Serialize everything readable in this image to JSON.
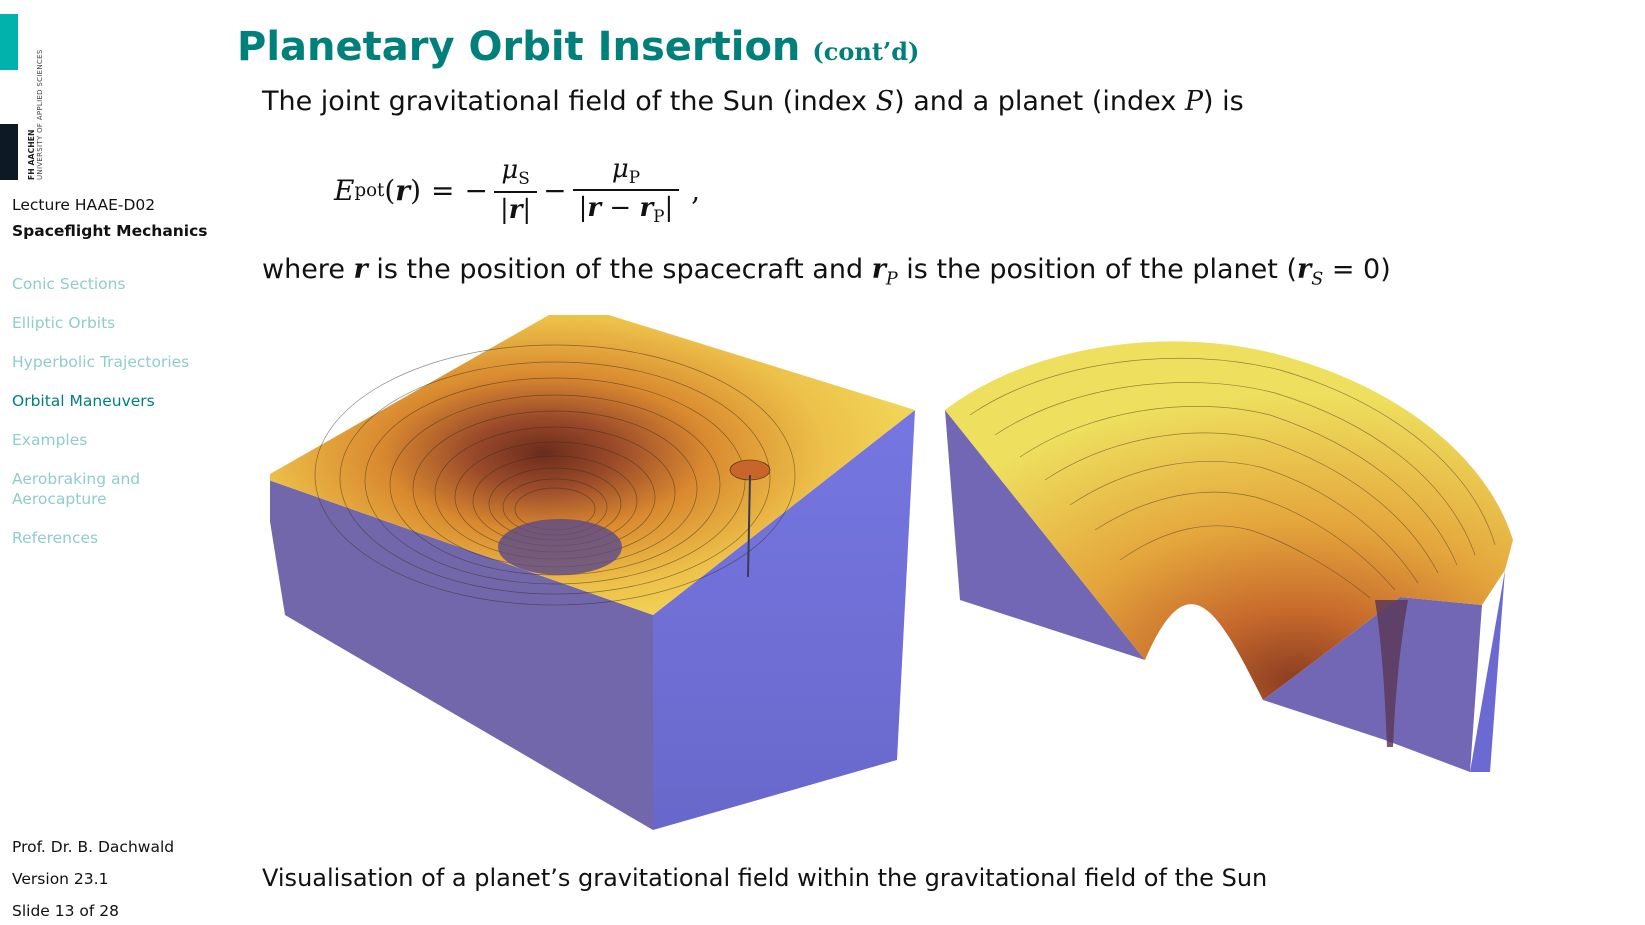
{
  "logo": {
    "line1": "FH AACHEN",
    "line2": "UNIVERSITY OF APPLIED SCIENCES",
    "colors": {
      "teal": "#00b1ac",
      "dark": "#0d1a26"
    }
  },
  "sidebar": {
    "lecture": "Lecture HAAE-D02",
    "course": "Spaceflight Mechanics",
    "items": [
      {
        "label": "Conic Sections",
        "active": false
      },
      {
        "label": "Elliptic Orbits",
        "active": false
      },
      {
        "label": "Hyperbolic Trajectories",
        "active": false
      },
      {
        "label": "Orbital Maneuvers",
        "active": true
      },
      {
        "label": "Examples",
        "active": false
      },
      {
        "label": "Aerobraking and Aerocapture",
        "active": false
      },
      {
        "label": "References",
        "active": false
      }
    ],
    "author": "Prof. Dr. B. Dachwald",
    "version": "Version 23.1",
    "slide": "Slide 13 of 28"
  },
  "slide": {
    "title": "Planetary Orbit Insertion",
    "title_suffix": "(cont’d)",
    "intro": {
      "t1": "The joint gravitational field of the Sun (index ",
      "s": "S",
      "t2": ") and a planet (index ",
      "p": "P",
      "t3": ") is"
    },
    "formula": {
      "lhs": "E",
      "lhs_sub": "pot",
      "arg": "r",
      "num1": "μ",
      "num1_sub": "S",
      "den1": "r",
      "num2": "μ",
      "num2_sub": "P",
      "den2_a": "r",
      "den2_b": "r",
      "den2_sub": "P"
    },
    "where": {
      "t1": "where ",
      "r": "r",
      "t2": " is the position of the spacecraft and ",
      "rp": "r",
      "rp_sub": "P",
      "t3": " is the position of the planet (",
      "rs": "r",
      "rs_sub": "S",
      "t4": " = 0)"
    },
    "caption": "Visualisation of a planet’s gravitational field within the gravitational field of the Sun",
    "colors": {
      "title": "#00807b",
      "nav_inactive": "#8fcdca",
      "surface_yellow": "#f0d454",
      "surface_orange": "#d9892f",
      "surface_deep": "#9a4a2a",
      "box_blue": "#6a6ad8"
    }
  }
}
